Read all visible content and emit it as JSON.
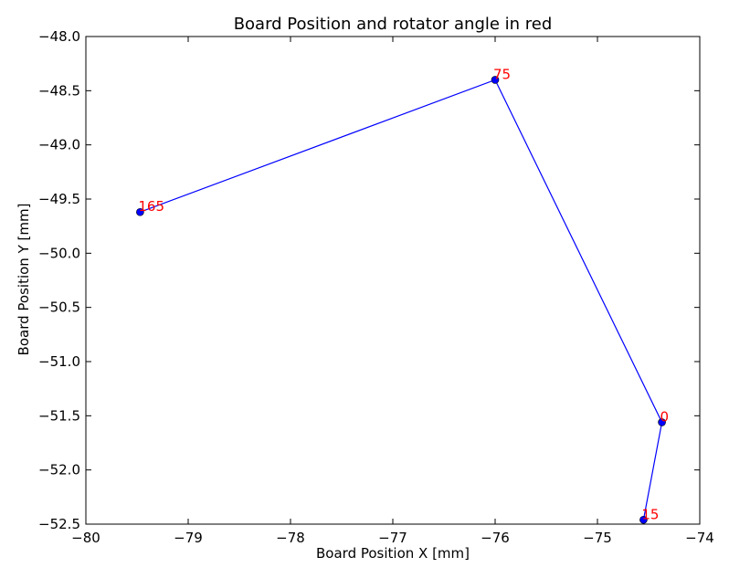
{
  "chart_data": {
    "type": "line",
    "title": "Board Position and rotator angle in red",
    "xlabel": "Board Position X [mm]",
    "ylabel": "Board Position Y [mm]",
    "xlim": [
      -80,
      -74
    ],
    "ylim": [
      -52.5,
      -48.0
    ],
    "xticks": [
      -80,
      -79,
      -78,
      -77,
      -76,
      -75,
      -74
    ],
    "yticks": [
      -48.0,
      -48.5,
      -49.0,
      -49.5,
      -50.0,
      -50.5,
      -51.0,
      -51.5,
      -52.0,
      -52.5
    ],
    "xtick_labels": [
      "−80",
      "−79",
      "−78",
      "−77",
      "−76",
      "−75",
      "−74"
    ],
    "ytick_labels": [
      "−48.0",
      "−48.5",
      "−49.0",
      "−49.5",
      "−50.0",
      "−50.5",
      "−51.0",
      "−51.5",
      "−52.0",
      "−52.5"
    ],
    "grid": false,
    "series": [
      {
        "line_color": "#0000ff",
        "marker_color": "#0000ff",
        "points": [
          {
            "x": -79.47,
            "y": -49.62,
            "label": "165"
          },
          {
            "x": -76.0,
            "y": -48.4,
            "label": "75"
          },
          {
            "x": -74.37,
            "y": -51.56,
            "label": "0"
          },
          {
            "x": -74.55,
            "y": -52.46,
            "label": "15"
          }
        ]
      }
    ],
    "annotation_color": "#ff0000"
  }
}
